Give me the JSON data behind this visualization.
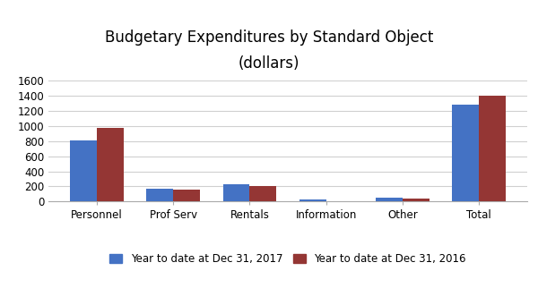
{
  "title_line1": "Budgetary Expenditures by Standard Object",
  "title_line2": "(dollars)",
  "categories": [
    "Personnel",
    "Prof Serv",
    "Rentals",
    "Information",
    "Other",
    "Total"
  ],
  "series": [
    {
      "label": "Year to date at Dec 31, 2017",
      "color": "#4472C4",
      "values": [
        810,
        165,
        225,
        25,
        50,
        1280
      ]
    },
    {
      "label": "Year to date at Dec 31, 2016",
      "color": "#943634",
      "values": [
        980,
        155,
        200,
        10,
        40,
        1400
      ]
    }
  ],
  "ylim": [
    0,
    1600
  ],
  "yticks": [
    0,
    200,
    400,
    600,
    800,
    1000,
    1200,
    1400,
    1600
  ],
  "bar_width": 0.35,
  "background_color": "#ffffff",
  "grid_color": "#d0d0d0",
  "title_fontsize": 12,
  "legend_fontsize": 8.5,
  "tick_fontsize": 8.5,
  "xlabel_fontsize": 8.5
}
